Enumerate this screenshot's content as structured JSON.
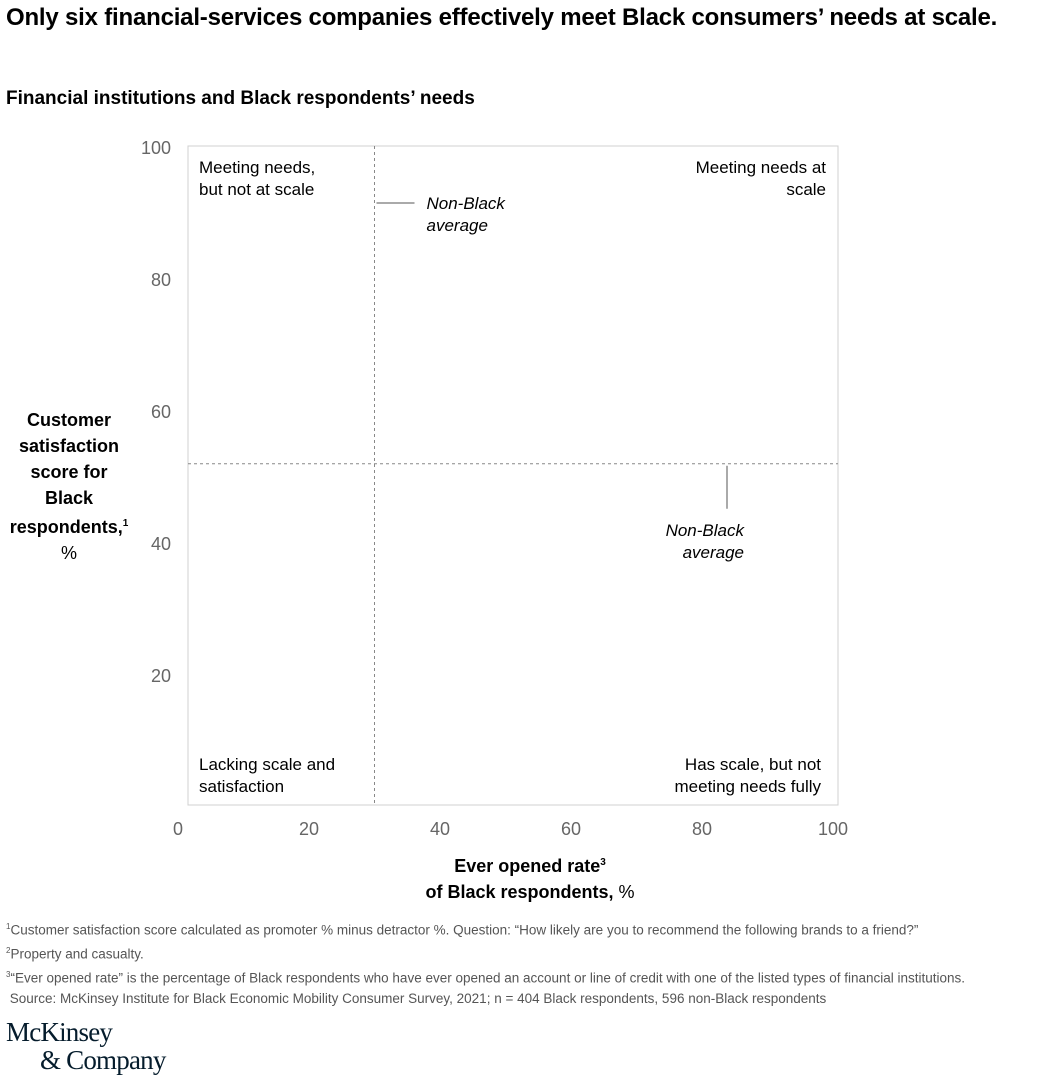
{
  "title": "Only six financial-services companies effectively meet Black consumers’ needs at scale.",
  "subtitle": "Financial institutions and Black respondents’ needs",
  "chart_data": {
    "type": "scatter",
    "title": "Financial institutions and Black respondents’ needs",
    "xlabel": "Ever opened rate³ of Black respondents, %",
    "xlabel_lines": [
      "Ever opened rate",
      "3",
      "of Black respondents,",
      "%"
    ],
    "ylabel_lines": [
      "Customer",
      "satisfaction",
      "score for",
      "Black",
      "respondents,",
      "1",
      "%"
    ],
    "xlim": [
      0,
      100
    ],
    "ylim": [
      0,
      100
    ],
    "xticks": [
      "0",
      "20",
      "40",
      "60",
      "80",
      "100"
    ],
    "yticks": [
      "100",
      "80",
      "60",
      "40",
      "20"
    ],
    "grid": false,
    "reference_lines": [
      {
        "axis": "x",
        "value": 30,
        "label": [
          "Non-Black",
          "average"
        ]
      },
      {
        "axis": "y",
        "value": 52,
        "label": [
          "Non-Black",
          "average"
        ]
      }
    ],
    "quadrants": {
      "top_left": [
        "Meeting needs,",
        "but not at scale"
      ],
      "top_right": [
        "Meeting needs at",
        "scale"
      ],
      "bottom_left": [
        "Lacking scale and",
        "satisfaction"
      ],
      "bottom_right": [
        "Has scale, but not",
        "meeting needs fully"
      ]
    },
    "series": []
  },
  "footnotes": [
    {
      "mark": "1",
      "text": "Customer satisfaction score calculated as promoter % minus detractor %. Question: “How likely are you to recommend the following brands to a friend?”"
    },
    {
      "mark": "2",
      "text": "Property and casualty."
    },
    {
      "mark": "3",
      "text": "“Ever opened rate” is the percentage of Black respondents who have ever opened an account or line of credit with one of the listed types of financial institutions."
    }
  ],
  "source": " Source: McKinsey Institute for Black Economic Mobility Consumer Survey, 2021; n = 404 Black respondents, 596 non-Black respondents",
  "logo": [
    "McKinsey",
    "& Company"
  ],
  "colors": {
    "text": "#000000",
    "tick": "#666666",
    "frame": "#d0d0d0",
    "dashed": "#888888",
    "logo": "#051c2c"
  }
}
